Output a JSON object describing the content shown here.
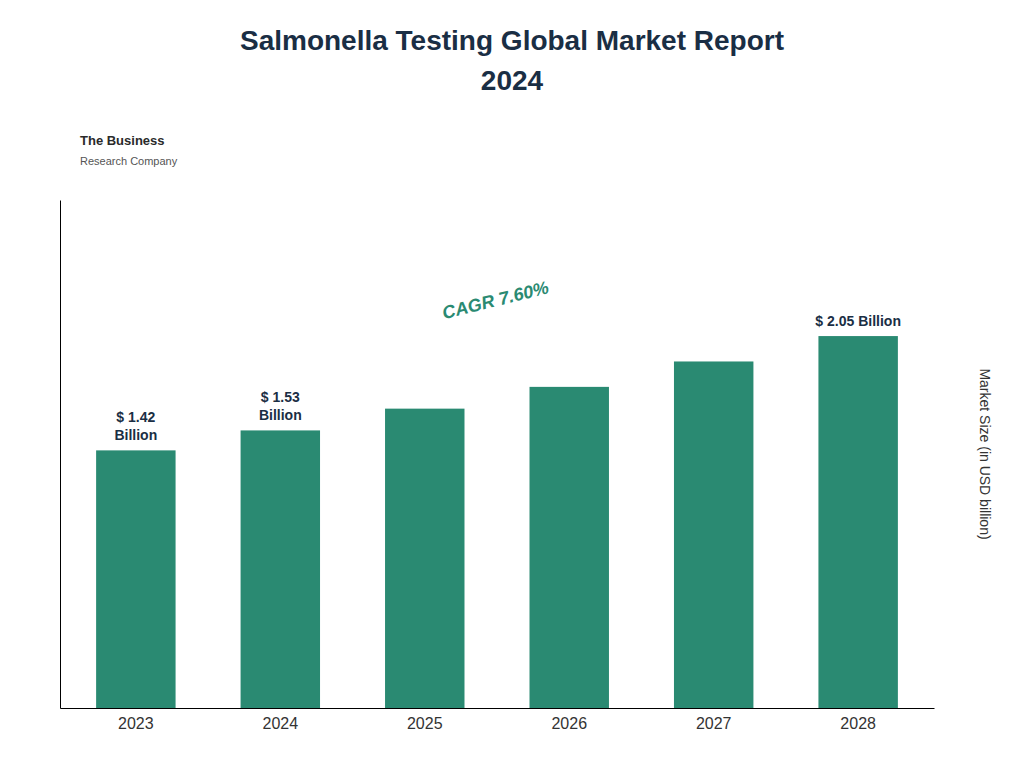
{
  "chart_data": {
    "type": "bar",
    "title": "Salmonella Testing Global Market Report",
    "subtitle": "2024",
    "ylabel": "Market Size (in USD billion)",
    "categories": [
      "2023",
      "2024",
      "2025",
      "2026",
      "2027",
      "2028"
    ],
    "values": [
      1.42,
      1.53,
      1.65,
      1.77,
      1.91,
      2.05
    ],
    "color": "#2a8a72",
    "ylim": [
      0,
      2.8
    ],
    "yticks": [],
    "grid": false,
    "tick_labels": "x",
    "annotations": [
      {
        "text": "$ 1.42",
        "category": "2023"
      },
      {
        "text": "Billion",
        "category": "2023"
      },
      {
        "text": "$ 1.53",
        "category": "2024"
      },
      {
        "text": "Billion",
        "category": "2024"
      },
      {
        "text": "$ 2.05 Billion",
        "category": "2028"
      },
      {
        "text": "CAGR 7.60%"
      },
      {
        "text": "The Business"
      },
      {
        "text": "Research Company"
      }
    ]
  }
}
